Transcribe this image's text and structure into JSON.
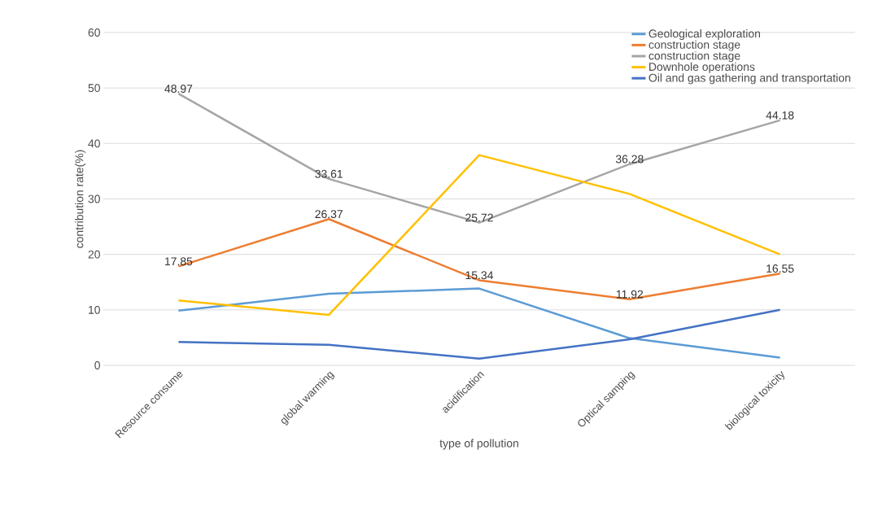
{
  "chart_data": {
    "type": "line",
    "xlabel": "type of pollution",
    "ylabel": "contribution rate(%)",
    "categories": [
      "Resource consume",
      "global warming",
      "acidification",
      "Optical samping",
      "biological toxicity"
    ],
    "series": [
      {
        "name": "Geological exploration",
        "color": "#5b9bd5",
        "values": [
          9.85,
          12.9,
          13.85,
          4.9,
          1.4
        ]
      },
      {
        "name": "construction stage",
        "color": "#ed7d31",
        "values": [
          17.85,
          26.37,
          15.34,
          11.92,
          16.55
        ],
        "value_labels": [
          "17.85",
          "26.37",
          "15.34",
          "11.92",
          "16.55"
        ]
      },
      {
        "name": "construction stage",
        "color": "#a5a5a5",
        "values": [
          48.97,
          33.61,
          25.72,
          36.28,
          44.18
        ],
        "value_labels": [
          "48.97",
          "33.61",
          "25.72",
          "36.28",
          "44.18"
        ]
      },
      {
        "name": "Downhole operations",
        "color": "#ffc000",
        "values": [
          11.7,
          9.1,
          37.9,
          30.9,
          20.0
        ]
      },
      {
        "name": "Oil and gas gathering and transportation",
        "color": "#4472c4",
        "values": [
          4.2,
          3.7,
          1.2,
          4.7,
          10.0
        ]
      }
    ],
    "ylim": [
      0,
      60
    ],
    "yticks": [
      0,
      10,
      20,
      30,
      40,
      50,
      60
    ],
    "grid": "y",
    "legend": "top right",
    "marker": "none",
    "line_style": "solid"
  }
}
